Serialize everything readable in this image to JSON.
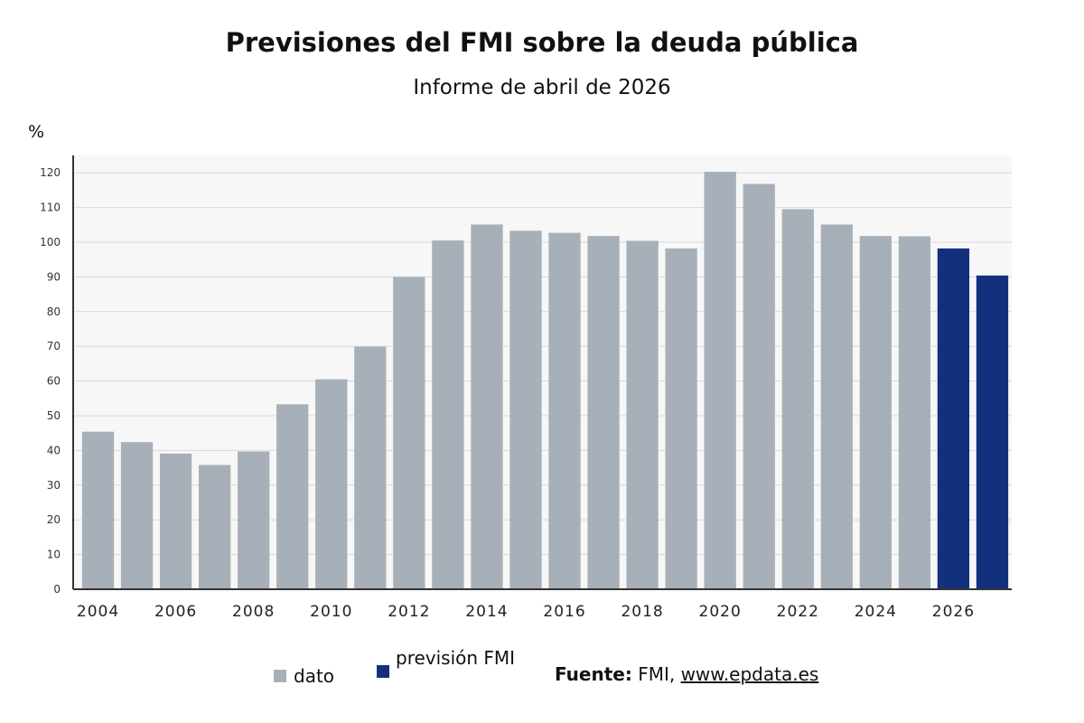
{
  "chart_data": {
    "type": "bar",
    "title": "Previsiones del FMI sobre la deuda pública",
    "subtitle": "Informe de abril de 2026",
    "ylabel": "%",
    "ylim": [
      0,
      125
    ],
    "yticks": [
      0,
      10,
      20,
      30,
      40,
      50,
      60,
      70,
      80,
      90,
      100,
      110,
      120
    ],
    "grid": true,
    "categories": [
      2004,
      2005,
      2006,
      2007,
      2008,
      2009,
      2010,
      2011,
      2012,
      2013,
      2014,
      2015,
      2016,
      2017,
      2018,
      2019,
      2020,
      2021,
      2022,
      2023,
      2024,
      2025,
      2026,
      2027
    ],
    "xtick_labels": [
      "2004",
      "2006",
      "2008",
      "2010",
      "2012",
      "2014",
      "2016",
      "2018",
      "2020",
      "2022",
      "2024",
      "2026"
    ],
    "values": [
      45.4,
      42.4,
      39.1,
      35.8,
      39.7,
      53.3,
      60.5,
      69.9,
      90.0,
      100.5,
      105.1,
      103.3,
      102.7,
      101.8,
      100.4,
      98.2,
      120.3,
      116.8,
      109.5,
      105.1,
      101.8,
      101.7,
      98.2,
      90.4
    ],
    "value_types": [
      "dato",
      "dato",
      "dato",
      "dato",
      "dato",
      "dato",
      "dato",
      "dato",
      "dato",
      "dato",
      "dato",
      "dato",
      "dato",
      "dato",
      "dato",
      "dato",
      "dato",
      "dato",
      "dato",
      "dato",
      "dato",
      "dato",
      "previsión FMI",
      "previsión FMI"
    ],
    "colors": {
      "dato": "#a7b0b9",
      "previsión FMI": "#12307c",
      "plot_bg": "#f7f7f7",
      "grid": "#d9d9d9",
      "axis": "#333333"
    },
    "legend": [
      {
        "name": "dato",
        "color": "#a7b0b9"
      },
      {
        "name": "previsión FMI",
        "color": "#12307c"
      }
    ]
  },
  "source": {
    "label": "Fuente:",
    "text": " FMI, ",
    "url": "www.epdata.es"
  }
}
